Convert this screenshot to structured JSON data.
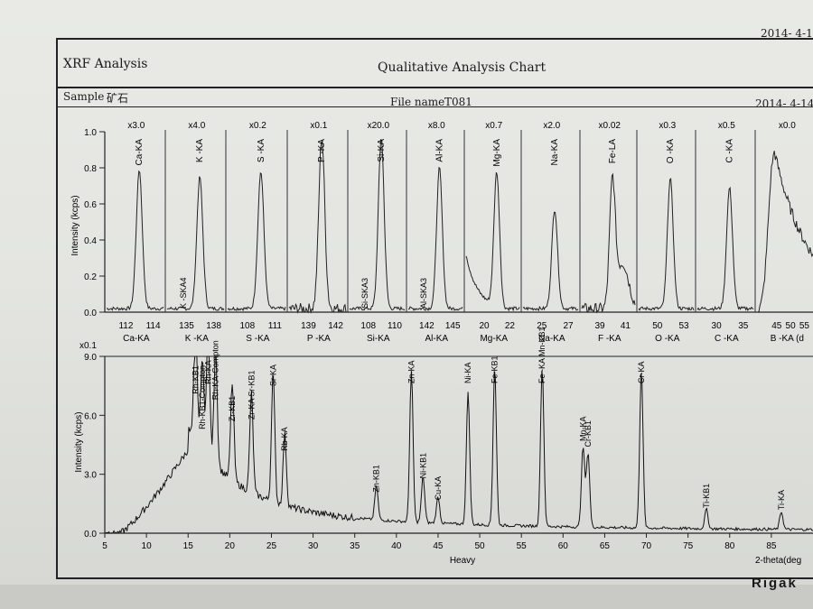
{
  "header": {
    "date_top": "2014- 4-1",
    "title_left": "XRF Analysis",
    "title_center": "Qualitative Analysis Chart",
    "sample_label": "Sample",
    "sample_value": "矿石",
    "file_label": "File name",
    "file_value": "T081",
    "date_right": "2014- 4-14",
    "footer_brand": "Rigak"
  },
  "chart_data": [
    {
      "type": "line",
      "title": "",
      "ylabel": "Intensity (kcps)",
      "ylim": [
        0,
        1.0
      ],
      "yticks": [
        "0.0",
        "0.2",
        "0.4",
        "0.6",
        "0.8",
        "1.0"
      ],
      "panels": [
        {
          "scale": "x3.0",
          "element": "Ca-KA",
          "peak_label": "Ca-KA",
          "ticks": [
            "112",
            "114"
          ],
          "peak": 0.77
        },
        {
          "scale": "x4.0",
          "element": "K -KA",
          "peak_label": "K -KA",
          "minor_label": "K -SKA4",
          "ticks": [
            "135",
            "138"
          ],
          "peak": 0.73
        },
        {
          "scale": "x0.2",
          "element": "S -KA",
          "peak_label": "S -KA",
          "ticks": [
            "108",
            "111"
          ],
          "peak": 0.76
        },
        {
          "scale": "x0.1",
          "element": "P -KA",
          "peak_label": "P -KA",
          "ticks": [
            "139",
            "142"
          ],
          "peak": 0.95
        },
        {
          "scale": "x20.0",
          "element": "Si-KA",
          "peak_label": "Si-KA",
          "minor_label": "Si-SKA3",
          "ticks": [
            "108",
            "110"
          ],
          "peak": 0.95
        },
        {
          "scale": "x8.0",
          "element": "Al-KA",
          "peak_label": "Al-KA",
          "minor_label": "Al-SKA3",
          "ticks": [
            "142",
            "145"
          ],
          "peak": 0.78
        },
        {
          "scale": "x0.7",
          "element": "Mg-KA",
          "peak_label": "Mg-KA",
          "ticks": [
            "20",
            "22"
          ],
          "peak": 0.75
        },
        {
          "scale": "x2.0",
          "element": "Na-KA",
          "peak_label": "Na-KA",
          "ticks": [
            "25",
            "27"
          ],
          "peak": 0.55
        },
        {
          "scale": "x0.02",
          "element": "F -KA",
          "peak_label": "Fe-LA",
          "ticks": [
            "39",
            "41"
          ],
          "peak": 0.68
        },
        {
          "scale": "x0.3",
          "element": "O -KA",
          "peak_label": "O -KA",
          "ticks": [
            "50",
            "53"
          ],
          "peak": 0.72
        },
        {
          "scale": "x0.5",
          "element": "C -KA",
          "peak_label": "C -KA",
          "ticks": [
            "30",
            "35"
          ],
          "peak": 0.67
        },
        {
          "scale": "x0.0",
          "element": "B -KA (d",
          "peak_label": "",
          "ticks": [
            "45",
            "50",
            "55"
          ],
          "peak": 0.86
        }
      ]
    },
    {
      "type": "line",
      "title": "",
      "xlabel": "Heavy",
      "xlabel_right": "2-theta(deg",
      "ylabel": "Intensity (kcps)",
      "y_multiplier": "x0.1",
      "xlim": [
        5,
        90
      ],
      "ylim": [
        0,
        9.0
      ],
      "xticks": [
        5,
        10,
        15,
        20,
        25,
        30,
        35,
        40,
        45,
        50,
        55,
        60,
        65,
        70,
        75,
        80,
        85
      ],
      "yticks": [
        "0.0",
        "3.0",
        "6.0",
        "9.0"
      ],
      "peaks": [
        {
          "x": 15.9,
          "y": 6.9,
          "label": "Rh-KB1"
        },
        {
          "x": 16.7,
          "y": 5.1,
          "label": "Rh-KB1-Compton"
        },
        {
          "x": 17.4,
          "y": 7.4,
          "label": "Rh-KA"
        },
        {
          "x": 18.3,
          "y": 6.6,
          "label": "Rh-KA-Compton"
        },
        {
          "x": 20.3,
          "y": 5.5,
          "label": "Zr-KB1"
        },
        {
          "x": 22.6,
          "y": 5.6,
          "label": "Zr-KA Sr-KB1"
        },
        {
          "x": 25.2,
          "y": 7.3,
          "label": "Sr-KA"
        },
        {
          "x": 26.6,
          "y": 4.0,
          "label": "Rb-KA"
        },
        {
          "x": 37.6,
          "y": 1.9,
          "label": "Zn-KB1"
        },
        {
          "x": 41.8,
          "y": 8.5,
          "label": "Zn-KA"
        },
        {
          "x": 43.2,
          "y": 2.6,
          "label": "Ni-KB1"
        },
        {
          "x": 45.0,
          "y": 1.5,
          "label": "Cu-KA"
        },
        {
          "x": 48.6,
          "y": 7.5,
          "label": "Ni-KA"
        },
        {
          "x": 51.8,
          "y": 9.0,
          "label": "Fe-KB1"
        },
        {
          "x": 57.5,
          "y": 9.0,
          "label": "Fe -KA Mn-KB1"
        },
        {
          "x": 62.4,
          "y": 4.5,
          "label": "Mn-KA"
        },
        {
          "x": 63.0,
          "y": 4.2,
          "label": "Cr-KB1"
        },
        {
          "x": 69.4,
          "y": 9.0,
          "label": "Cr-KA"
        },
        {
          "x": 77.2,
          "y": 1.1,
          "label": "Ti-KB1"
        },
        {
          "x": 86.2,
          "y": 1.0,
          "label": "Ti-KA"
        }
      ]
    }
  ]
}
